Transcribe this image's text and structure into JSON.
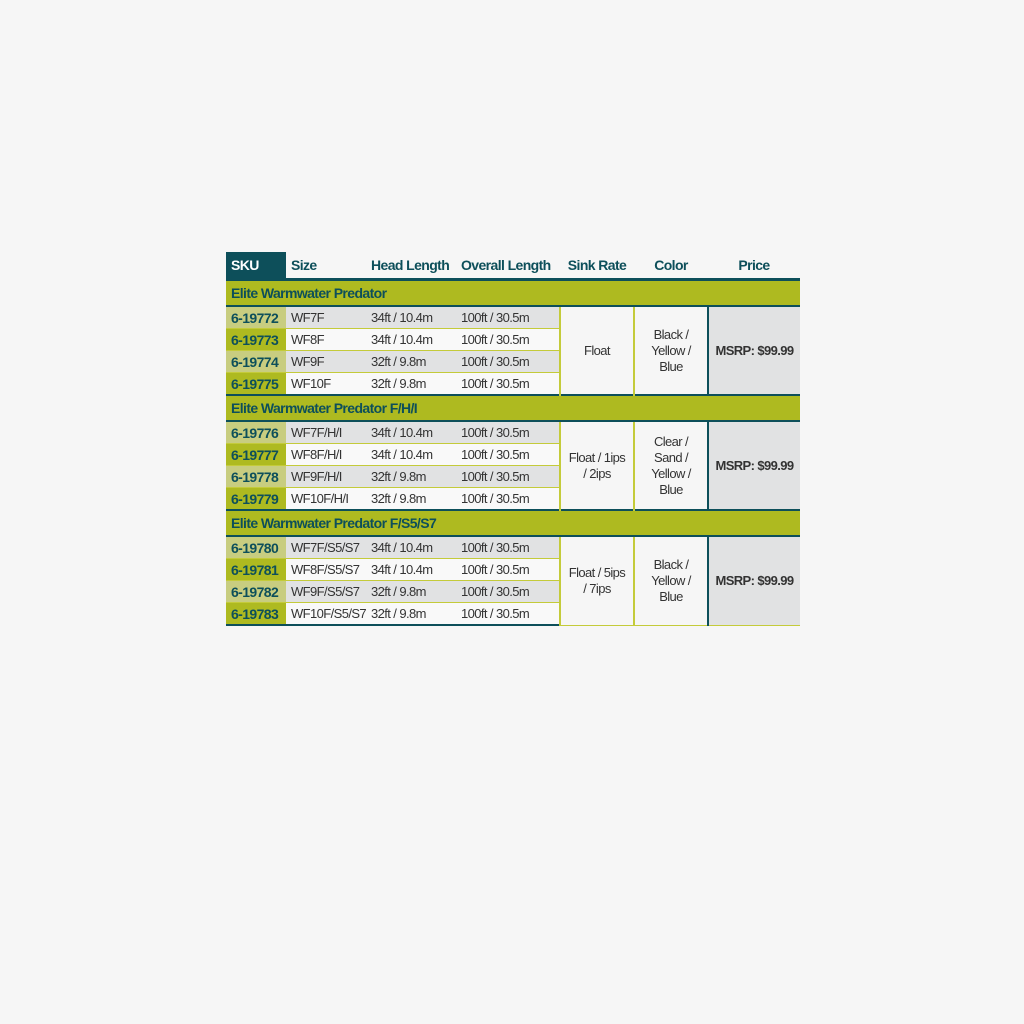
{
  "headers": {
    "sku": "SKU",
    "size": "Size",
    "head": "Head Length",
    "overall": "Overall Length",
    "sink": "Sink Rate",
    "color": "Color",
    "price": "Price"
  },
  "groups": [
    {
      "title": "Elite Warmwater Predator",
      "sink": "Float",
      "color": "Black / Yellow / Blue",
      "price": "MSRP: $99.99",
      "rows": [
        {
          "sku": "6-19772",
          "size": "WF7F",
          "head": "34ft / 10.4m",
          "overall": "100ft / 30.5m"
        },
        {
          "sku": "6-19773",
          "size": "WF8F",
          "head": "34ft / 10.4m",
          "overall": "100ft / 30.5m"
        },
        {
          "sku": "6-19774",
          "size": "WF9F",
          "head": "32ft / 9.8m",
          "overall": "100ft / 30.5m"
        },
        {
          "sku": "6-19775",
          "size": "WF10F",
          "head": "32ft / 9.8m",
          "overall": "100ft / 30.5m"
        }
      ]
    },
    {
      "title": "Elite Warmwater Predator F/H/I",
      "sink": "Float / 1ips / 2ips",
      "color": "Clear / Sand / Yellow / Blue",
      "price": "MSRP: $99.99",
      "rows": [
        {
          "sku": "6-19776",
          "size": "WF7F/H/I",
          "head": "34ft / 10.4m",
          "overall": "100ft / 30.5m"
        },
        {
          "sku": "6-19777",
          "size": "WF8F/H/I",
          "head": "34ft / 10.4m",
          "overall": "100ft / 30.5m"
        },
        {
          "sku": "6-19778",
          "size": "WF9F/H/I",
          "head": "32ft / 9.8m",
          "overall": "100ft / 30.5m"
        },
        {
          "sku": "6-19779",
          "size": "WF10F/H/I",
          "head": "32ft / 9.8m",
          "overall": "100ft / 30.5m"
        }
      ]
    },
    {
      "title": "Elite Warmwater Predator F/S5/S7",
      "sink": "Float / 5ips / 7ips",
      "color": "Black / Yellow / Blue",
      "price": "MSRP: $99.99",
      "rows": [
        {
          "sku": "6-19780",
          "size": "WF7F/S5/S7",
          "head": "34ft / 10.4m",
          "overall": "100ft / 30.5m"
        },
        {
          "sku": "6-19781",
          "size": "WF8F/S5/S7",
          "head": "34ft / 10.4m",
          "overall": "100ft / 30.5m"
        },
        {
          "sku": "6-19782",
          "size": "WF9F/S5/S7",
          "head": "32ft / 9.8m",
          "overall": "100ft / 30.5m"
        },
        {
          "sku": "6-19783",
          "size": "WF10F/S5/S7",
          "head": "32ft / 9.8m",
          "overall": "100ft / 30.5m"
        }
      ]
    }
  ],
  "colors": {
    "teal": "#0d4f5a",
    "olive": "#aeba20",
    "olive_light": "#c8cd80",
    "row_gray": "#e1e2e3"
  }
}
